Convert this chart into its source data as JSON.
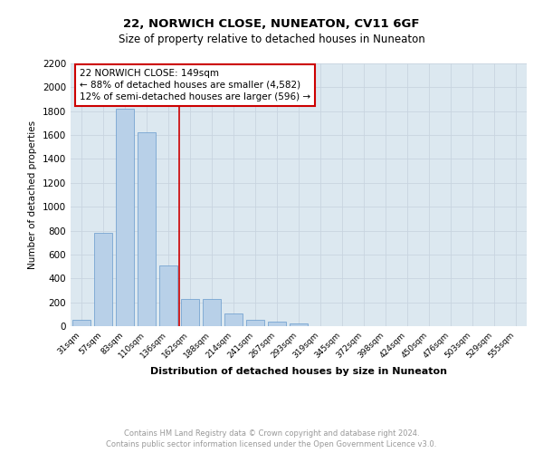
{
  "title1": "22, NORWICH CLOSE, NUNEATON, CV11 6GF",
  "title2": "Size of property relative to detached houses in Nuneaton",
  "xlabel": "Distribution of detached houses by size in Nuneaton",
  "ylabel": "Number of detached properties",
  "categories": [
    "31sqm",
    "57sqm",
    "83sqm",
    "110sqm",
    "136sqm",
    "162sqm",
    "188sqm",
    "214sqm",
    "241sqm",
    "267sqm",
    "293sqm",
    "319sqm",
    "345sqm",
    "372sqm",
    "398sqm",
    "424sqm",
    "450sqm",
    "476sqm",
    "503sqm",
    "529sqm",
    "555sqm"
  ],
  "values": [
    50,
    780,
    1820,
    1620,
    510,
    230,
    230,
    105,
    55,
    35,
    25,
    0,
    0,
    0,
    0,
    0,
    0,
    0,
    0,
    0,
    0
  ],
  "bar_color": "#b8d0e8",
  "bar_edge_color": "#6699cc",
  "vline_color": "#cc0000",
  "annotation_text": "22 NORWICH CLOSE: 149sqm\n← 88% of detached houses are smaller (4,582)\n12% of semi-detached houses are larger (596) →",
  "ylim": [
    0,
    2200
  ],
  "yticks": [
    0,
    200,
    400,
    600,
    800,
    1000,
    1200,
    1400,
    1600,
    1800,
    2000,
    2200
  ],
  "grid_color": "#c8d4e0",
  "bg_color": "#dce8f0",
  "footnote": "Contains HM Land Registry data © Crown copyright and database right 2024.\nContains public sector information licensed under the Open Government Licence v3.0.",
  "footnote_color": "#999999"
}
